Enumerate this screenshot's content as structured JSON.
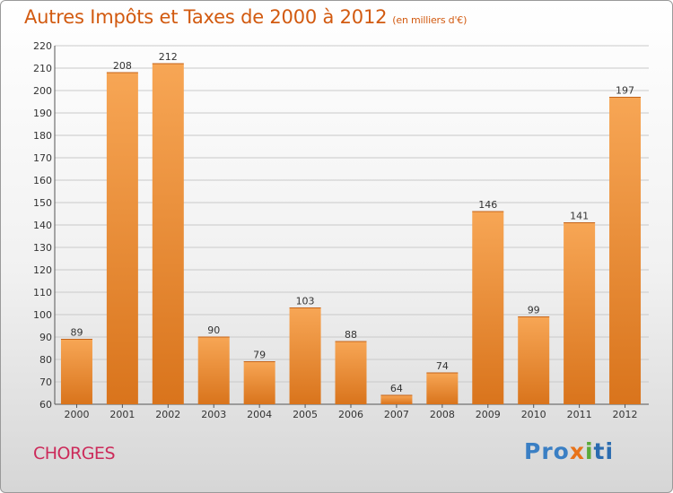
{
  "title": "Autres Impôts et Taxes de 2000 à 2012",
  "unit_note": "(en milliers d'€)",
  "commune": "CHORGES",
  "logo": {
    "text": "Proxiti",
    "parts": [
      "Pro",
      "x",
      "i",
      "ti"
    ]
  },
  "colors": {
    "bar_light": "#f7a655",
    "bar_dark": "#d9741c",
    "title": "#d25a10",
    "commune": "#cc2a5a",
    "grid": "#c9c9c9"
  },
  "chart_data": {
    "type": "bar",
    "title": "Autres Impôts et Taxes de 2000 à 2012",
    "subtitle": "(en milliers d'€)",
    "categories": [
      "2000",
      "2001",
      "2002",
      "2003",
      "2004",
      "2005",
      "2006",
      "2007",
      "2008",
      "2009",
      "2010",
      "2011",
      "2012"
    ],
    "values": [
      89,
      208,
      212,
      90,
      79,
      103,
      88,
      64,
      74,
      146,
      99,
      141,
      197
    ],
    "ylim": [
      60,
      220
    ],
    "yticks": [
      60,
      70,
      80,
      90,
      100,
      110,
      120,
      130,
      140,
      150,
      160,
      170,
      180,
      190,
      200,
      210,
      220
    ],
    "grid": true,
    "data_labels": true
  }
}
